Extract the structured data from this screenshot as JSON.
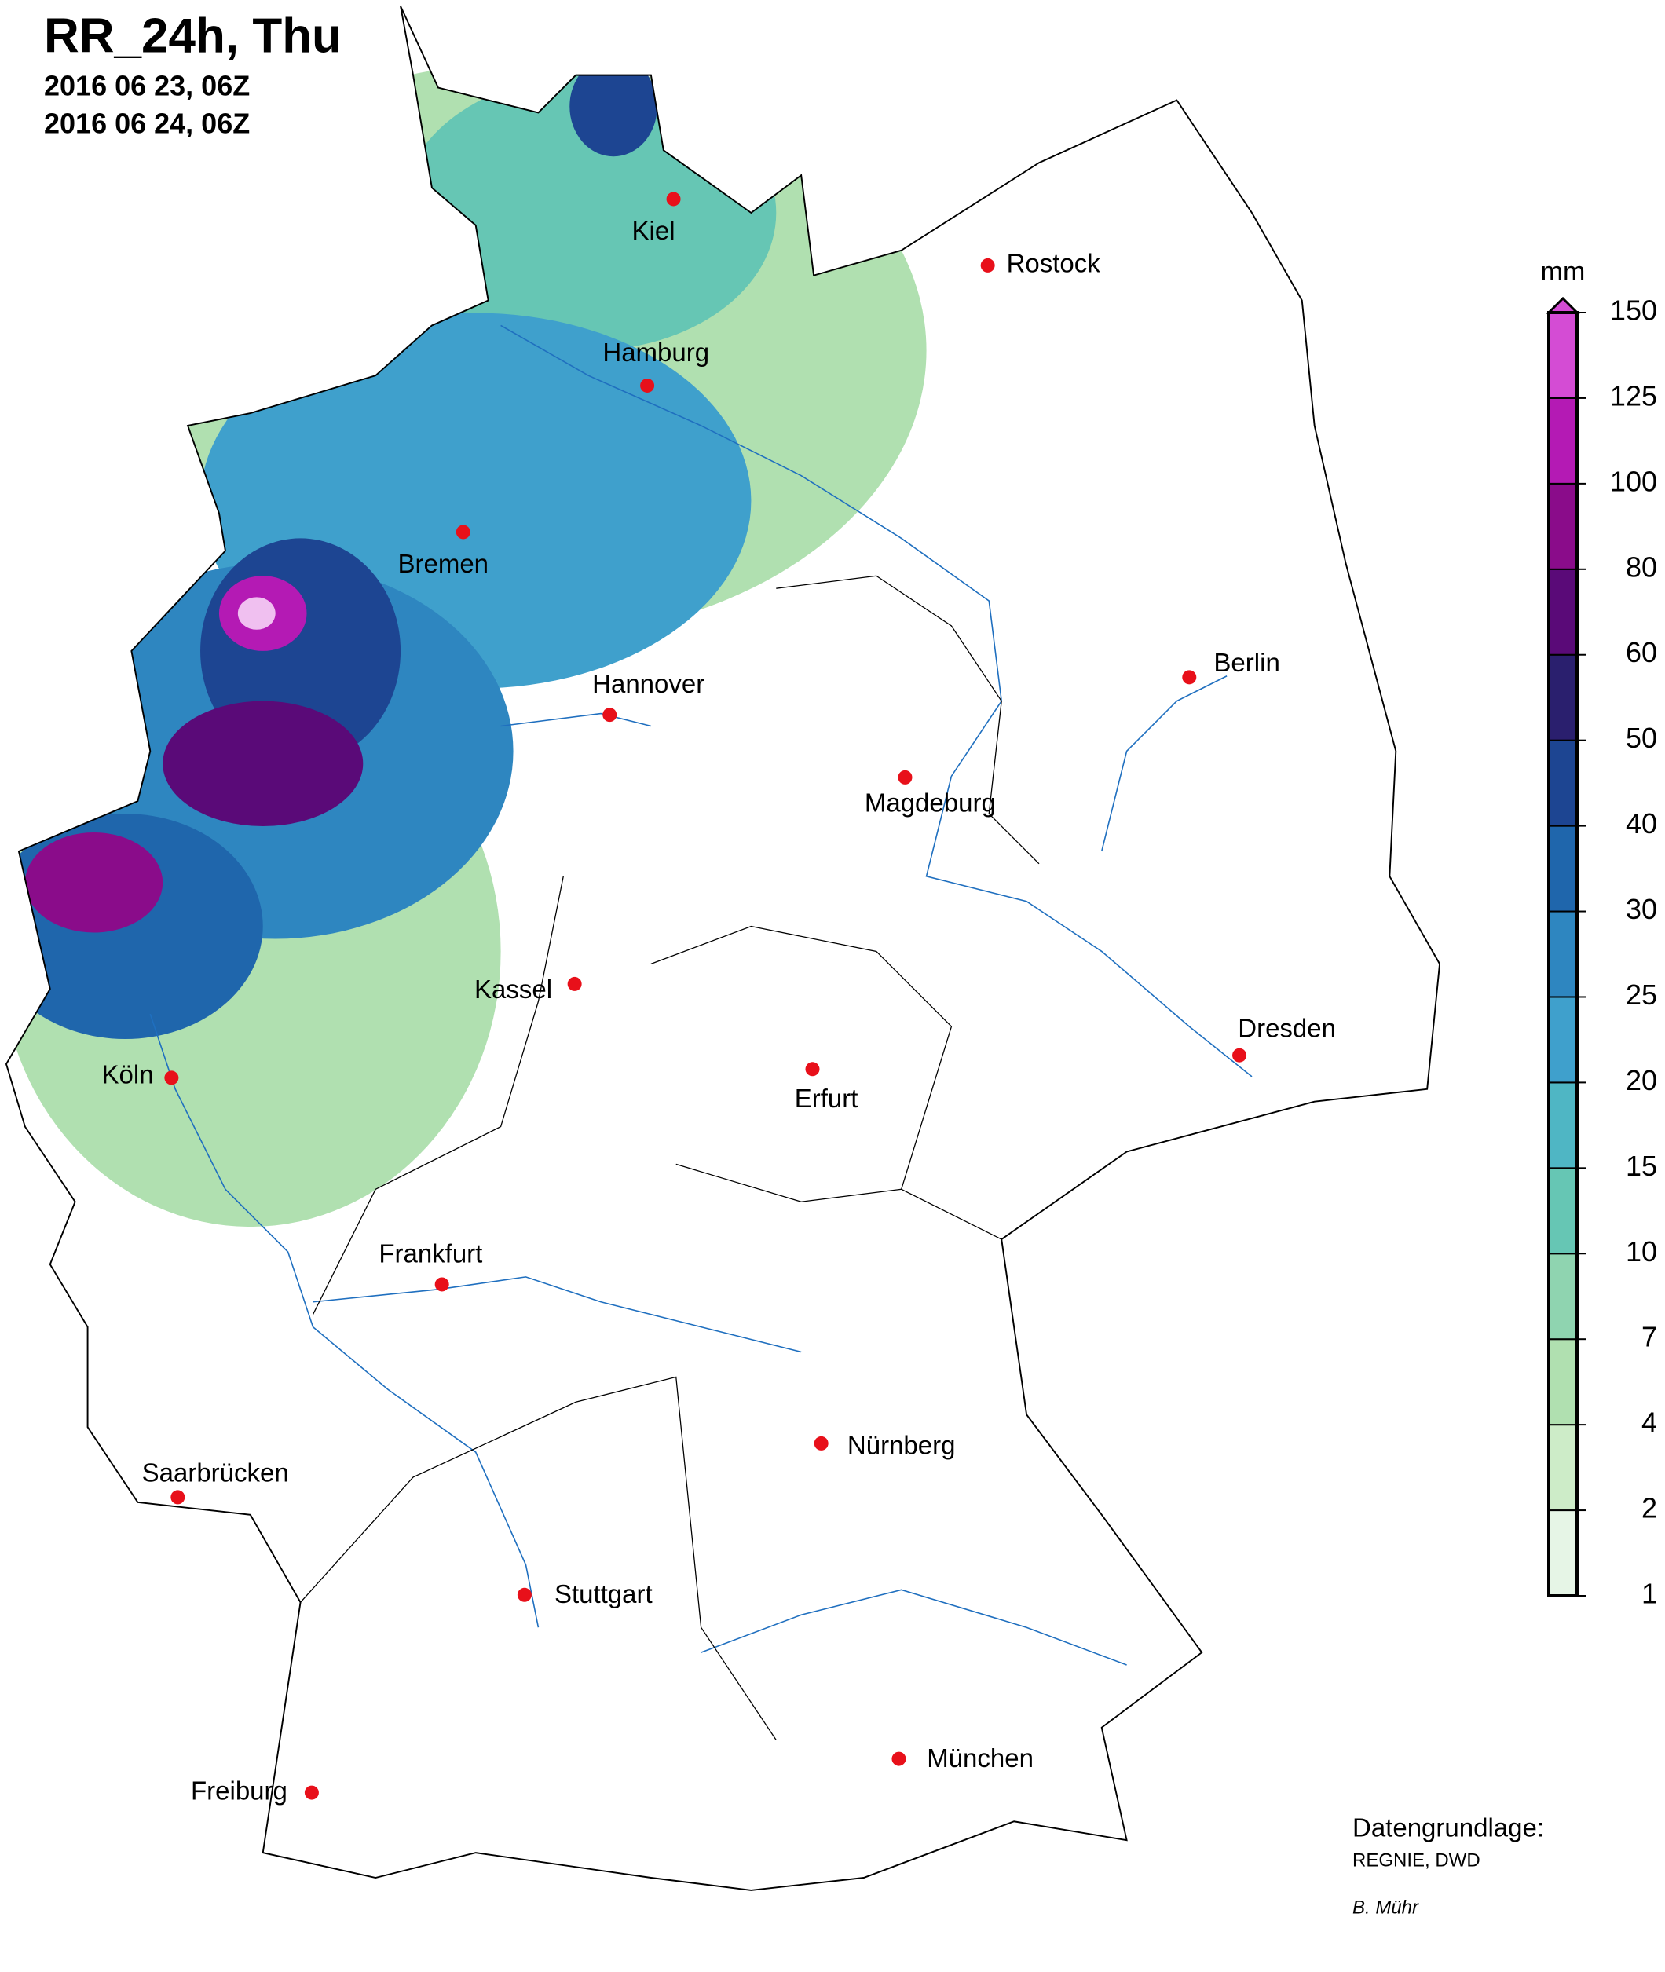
{
  "header": {
    "title": "RR_24h, Thu",
    "line1": "2016 06 23, 06Z",
    "line2": "2016 06 24, 06Z"
  },
  "cities": [
    "Kiel",
    "Rostock",
    "Hamburg",
    "Bremen",
    "Hannover",
    "Berlin",
    "Magdeburg",
    "Kassel",
    "Dresden",
    "Köln",
    "Erfurt",
    "Frankfurt",
    "Nürnberg",
    "Saarbrücken",
    "Stuttgart",
    "München",
    "Freiburg"
  ],
  "legend": {
    "unit": "mm",
    "levels": [
      1,
      2,
      4,
      7,
      10,
      15,
      20,
      25,
      30,
      40,
      50,
      60,
      80,
      100,
      125,
      150
    ],
    "colors": [
      "#e6f5e6",
      "#cdecc8",
      "#b0e0b0",
      "#8fd4b0",
      "#66c6b4",
      "#4fb6c4",
      "#3fa0cc",
      "#2e86c0",
      "#1f66ac",
      "#1d4592",
      "#2a1f6e",
      "#5a0a78",
      "#8a0c8a",
      "#b41ab4",
      "#d44cd4"
    ]
  },
  "credits": {
    "source_label": "Datengrundlage:",
    "source": "REGNIE, DWD",
    "author": "B. Mühr"
  }
}
